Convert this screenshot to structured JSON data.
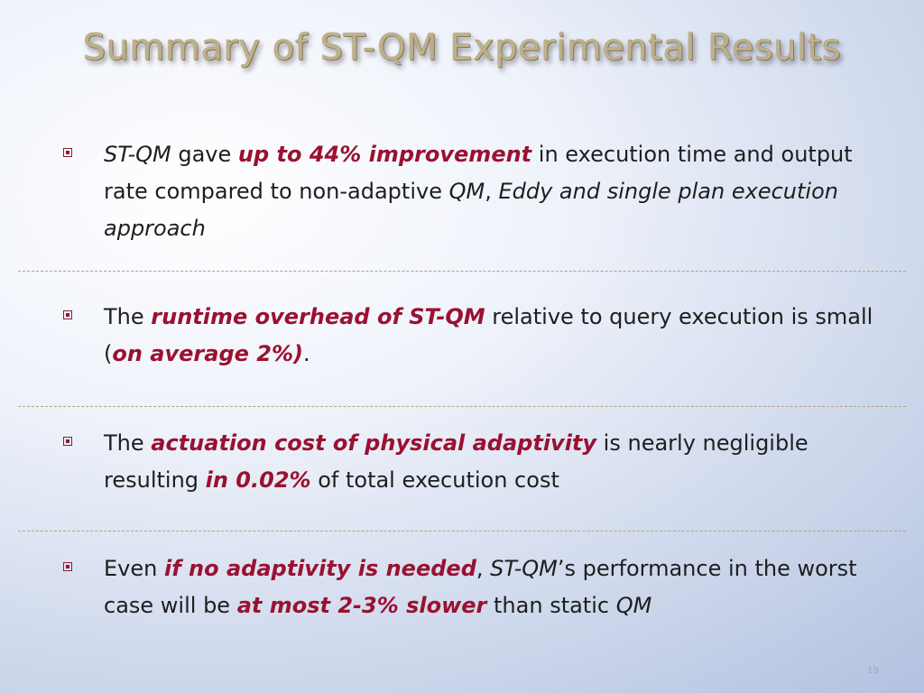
{
  "slide": {
    "title": "Summary of ST-QM Experimental Results",
    "page_number": "19"
  },
  "bullets": [
    {
      "runs": [
        {
          "text": "ST-QM",
          "style": "it"
        },
        {
          "text": " gave ",
          "style": ""
        },
        {
          "text": "up to 44% improvement",
          "style": "hl"
        },
        {
          "text": " in execution time and output rate compared to non-adaptive ",
          "style": ""
        },
        {
          "text": "QM",
          "style": "it"
        },
        {
          "text": ", ",
          "style": ""
        },
        {
          "text": "Eddy and single plan execution approach",
          "style": "it"
        }
      ]
    },
    {
      "runs": [
        {
          "text": "The ",
          "style": ""
        },
        {
          "text": "runtime overhead of ST-QM",
          "style": "hl"
        },
        {
          "text": " relative to query execution is small (",
          "style": ""
        },
        {
          "text": "on average 2%)",
          "style": "hl"
        },
        {
          "text": ".",
          "style": ""
        }
      ]
    },
    {
      "runs": [
        {
          "text": "The ",
          "style": ""
        },
        {
          "text": "actuation cost of physical adaptivity",
          "style": "hl"
        },
        {
          "text": " is nearly negligible resulting ",
          "style": ""
        },
        {
          "text": "in 0.02%",
          "style": "hl"
        },
        {
          "text": " of total execution cost",
          "style": ""
        }
      ]
    },
    {
      "runs": [
        {
          "text": "Even ",
          "style": ""
        },
        {
          "text": "if no adaptivity is needed",
          "style": "hl"
        },
        {
          "text": ", ",
          "style": ""
        },
        {
          "text": "ST-QM",
          "style": "it"
        },
        {
          "text": "’s performance in the worst case will be ",
          "style": ""
        },
        {
          "text": "at most 2-3% slower",
          "style": "hl"
        },
        {
          "text": " than static ",
          "style": ""
        },
        {
          "text": "QM",
          "style": "it"
        }
      ]
    }
  ],
  "colors": {
    "highlight": "#9a1131",
    "title": "#bfb08a",
    "divider": "#b3a47e"
  }
}
